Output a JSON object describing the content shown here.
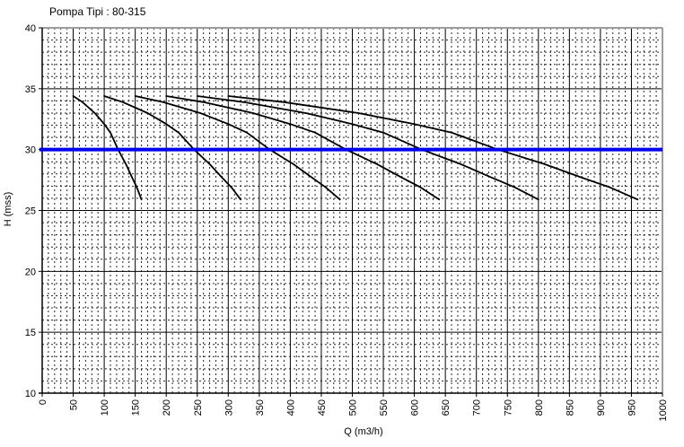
{
  "title": "Pompa Tipi : 80-315",
  "colors": {
    "background": "#ffffff",
    "curve": "#000000",
    "grid_major": "#000000",
    "grid_minor": "#262626",
    "plot_border": "#9e9e9e",
    "duty_line": "#0000ee",
    "text": "#000000"
  },
  "chart_data": {
    "type": "line",
    "title": "Pompa Tipi : 80-315",
    "xlabel": "Q (m3/h)",
    "ylabel": "H (mss)",
    "xlim": [
      0,
      1000
    ],
    "ylim": [
      10,
      40
    ],
    "x_ticks": [
      0,
      50,
      100,
      150,
      200,
      250,
      300,
      350,
      400,
      450,
      500,
      550,
      600,
      650,
      700,
      750,
      800,
      850,
      900,
      950,
      1000
    ],
    "y_ticks": [
      10,
      15,
      20,
      25,
      30,
      35,
      40
    ],
    "x_minor_step": 10,
    "y_minor_step": 1,
    "grid": "major solid, minor dashed, full grid on",
    "legend": "none",
    "duty_line": {
      "H": 30,
      "x_extent": [
        0,
        1000
      ],
      "color": "#0000ee",
      "width": 4
    },
    "series": [
      {
        "name": "curve_1",
        "points": [
          [
            50,
            34.4
          ],
          [
            65,
            33.9
          ],
          [
            85,
            33.0
          ],
          [
            100,
            32.1
          ],
          [
            110,
            31.4
          ],
          [
            122.5,
            30.0
          ],
          [
            135,
            28.8
          ],
          [
            145,
            27.7
          ],
          [
            152.5,
            26.9
          ],
          [
            160,
            25.9
          ]
        ]
      },
      {
        "name": "curve_2",
        "points": [
          [
            100,
            34.4
          ],
          [
            130,
            33.9
          ],
          [
            170,
            33.0
          ],
          [
            200,
            32.1
          ],
          [
            220,
            31.4
          ],
          [
            245,
            30.0
          ],
          [
            270,
            28.8
          ],
          [
            290,
            27.7
          ],
          [
            305,
            26.9
          ],
          [
            320,
            25.9
          ]
        ]
      },
      {
        "name": "curve_3",
        "points": [
          [
            150,
            34.4
          ],
          [
            195,
            33.9
          ],
          [
            255,
            33.0
          ],
          [
            300,
            32.1
          ],
          [
            330,
            31.4
          ],
          [
            367,
            30.0
          ],
          [
            405,
            28.8
          ],
          [
            435,
            27.7
          ],
          [
            457,
            26.9
          ],
          [
            480,
            25.9
          ]
        ]
      },
      {
        "name": "curve_4",
        "points": [
          [
            200,
            34.4
          ],
          [
            260,
            33.9
          ],
          [
            340,
            33.0
          ],
          [
            400,
            32.1
          ],
          [
            440,
            31.4
          ],
          [
            490,
            30.0
          ],
          [
            540,
            28.8
          ],
          [
            580,
            27.7
          ],
          [
            610,
            26.9
          ],
          [
            640,
            25.9
          ]
        ]
      },
      {
        "name": "curve_5",
        "points": [
          [
            250,
            34.4
          ],
          [
            325,
            33.9
          ],
          [
            425,
            33.0
          ],
          [
            500,
            32.1
          ],
          [
            550,
            31.4
          ],
          [
            612,
            30.0
          ],
          [
            675,
            28.8
          ],
          [
            725,
            27.7
          ],
          [
            762,
            26.9
          ],
          [
            800,
            25.9
          ]
        ]
      },
      {
        "name": "curve_6",
        "points": [
          [
            300,
            34.4
          ],
          [
            390,
            33.9
          ],
          [
            510,
            33.0
          ],
          [
            600,
            32.1
          ],
          [
            660,
            31.4
          ],
          [
            735,
            30.0
          ],
          [
            810,
            28.8
          ],
          [
            870,
            27.7
          ],
          [
            915,
            26.9
          ],
          [
            960,
            25.9
          ]
        ]
      }
    ]
  }
}
